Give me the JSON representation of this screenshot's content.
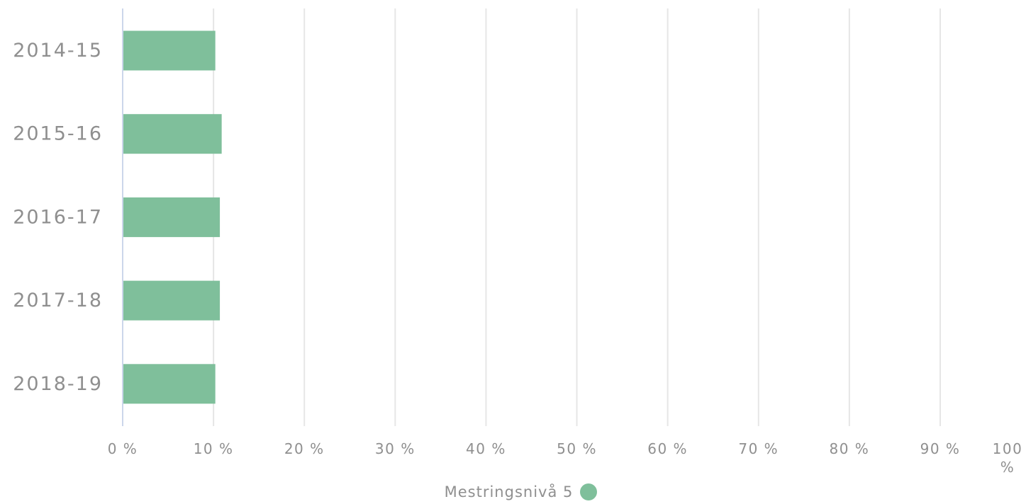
{
  "chart_data": {
    "type": "bar",
    "orientation": "horizontal",
    "categories": [
      "2014-15",
      "2015-16",
      "2016-17",
      "2017-18",
      "2018-19"
    ],
    "series": [
      {
        "name": "Mestringsnivå 5",
        "values": [
          10.2,
          10.9,
          10.7,
          10.7,
          10.2
        ],
        "color": "#7fbf9b"
      }
    ],
    "xlim": [
      0,
      100
    ],
    "xticks": [
      "0 %",
      "10 %",
      "20 %",
      "30 %",
      "40 %",
      "50 %",
      "60 %",
      "70 %",
      "80 %",
      "90 %",
      "100 %"
    ],
    "grid": true,
    "legend_position": "bottom-center",
    "colors": {
      "grid": "#e6e6e6",
      "axis": "#ccd6eb",
      "text": "#8f8f8f"
    }
  }
}
